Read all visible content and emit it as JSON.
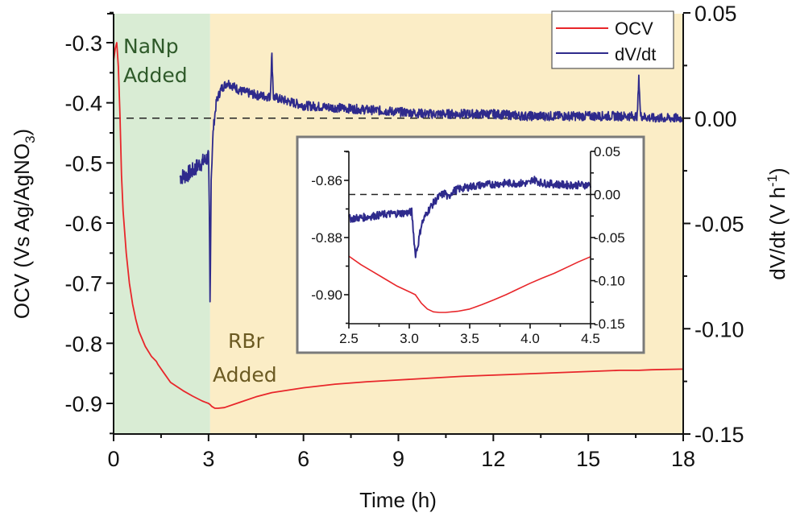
{
  "chart_data": {
    "type": "line",
    "title": "",
    "xlabel": "Time (h)",
    "ylabel_left": "OCV (Vs Ag/AgNO",
    "ylabel_left_sub": "3",
    "ylabel_left_close": ")",
    "ylabel_right": "dV/dt (V h",
    "ylabel_right_sup": "-1",
    "ylabel_right_close": ")",
    "xlim": [
      0,
      18
    ],
    "ylim_left": [
      -0.95,
      -0.25
    ],
    "ylim_right": [
      -0.15,
      0.05
    ],
    "x_ticks": [
      0,
      3,
      6,
      9,
      12,
      15,
      18
    ],
    "x_tick_labels": [
      "0",
      "3",
      "6",
      "9",
      "12",
      "15",
      "18"
    ],
    "y_left_ticks": [
      -0.3,
      -0.4,
      -0.5,
      -0.6,
      -0.7,
      -0.8,
      -0.9
    ],
    "y_left_tick_labels": [
      "-0.3",
      "-0.4",
      "-0.5",
      "-0.6",
      "-0.7",
      "-0.8",
      "-0.9"
    ],
    "y_right_ticks": [
      0.05,
      0.0,
      -0.05,
      -0.1,
      -0.15
    ],
    "y_right_tick_labels": [
      "0.05",
      "0.00",
      "-0.05",
      "-0.10",
      "-0.15"
    ],
    "grid": false,
    "legend": {
      "placement": "top-right",
      "entries": [
        {
          "name": "OCV",
          "color": "#e8262a"
        },
        {
          "name": "dV/dt",
          "color": "#2e2a8c"
        }
      ]
    },
    "regions": [
      {
        "name": "NaNp",
        "x_range": [
          0,
          3.05
        ],
        "color": "#d9ecd4"
      },
      {
        "name": "RBr",
        "x_range": [
          3.05,
          18
        ],
        "color": "#fbedc6"
      }
    ],
    "annotations": [
      {
        "text_line1": "NaNp",
        "text_line2": "Added",
        "color": "#2f5a2a",
        "x": 0.35,
        "y": -0.3
      },
      {
        "text_line1": "RBr",
        "text_line2": "Added",
        "color": "#6b5a22",
        "x": 4.3,
        "y": -0.83
      }
    ],
    "reference_line": {
      "axis": "right",
      "y": 0.0,
      "style": "dashed"
    },
    "series": [
      {
        "name": "OCV",
        "axis": "left",
        "color": "#e8262a",
        "x": [
          0.0,
          0.05,
          0.1,
          0.15,
          0.2,
          0.25,
          0.3,
          0.4,
          0.5,
          0.6,
          0.7,
          0.8,
          1.0,
          1.2,
          1.35,
          1.4,
          1.6,
          1.8,
          2.0,
          2.2,
          2.5,
          2.8,
          3.0,
          3.05,
          3.1,
          3.2,
          3.3,
          3.5,
          4.0,
          4.5,
          5.0,
          6.0,
          7.0,
          8.0,
          9.0,
          10.0,
          11.0,
          12.0,
          13.0,
          14.0,
          15.0,
          16.0,
          16.6,
          17.0,
          18.0
        ],
        "y": [
          -0.33,
          -0.31,
          -0.3,
          -0.34,
          -0.42,
          -0.52,
          -0.58,
          -0.65,
          -0.7,
          -0.735,
          -0.76,
          -0.78,
          -0.805,
          -0.822,
          -0.83,
          -0.835,
          -0.85,
          -0.865,
          -0.872,
          -0.879,
          -0.888,
          -0.896,
          -0.9,
          -0.902,
          -0.905,
          -0.908,
          -0.908,
          -0.907,
          -0.898,
          -0.889,
          -0.882,
          -0.874,
          -0.868,
          -0.864,
          -0.861,
          -0.858,
          -0.855,
          -0.853,
          -0.851,
          -0.849,
          -0.847,
          -0.845,
          -0.845,
          -0.844,
          -0.843
        ]
      },
      {
        "name": "dV/dt",
        "axis": "right",
        "color": "#2e2a8c",
        "x": [
          2.1,
          2.3,
          2.5,
          2.7,
          2.9,
          3.0,
          3.03,
          3.05,
          3.08,
          3.15,
          3.25,
          3.4,
          3.6,
          3.8,
          4.0,
          4.5,
          4.95,
          5.0,
          5.05,
          5.5,
          6.0,
          7.0,
          8.0,
          9.0,
          10.0,
          11.0,
          12.0,
          13.0,
          14.0,
          15.0,
          16.0,
          16.55,
          16.6,
          16.65,
          17.0,
          18.0
        ],
        "y": [
          -0.028,
          -0.027,
          -0.025,
          -0.022,
          -0.02,
          -0.018,
          -0.05,
          -0.092,
          -0.03,
          -0.005,
          0.008,
          0.014,
          0.017,
          0.015,
          0.013,
          0.011,
          0.01,
          0.031,
          0.01,
          0.008,
          0.006,
          0.005,
          0.004,
          0.003,
          0.002,
          0.002,
          0.002,
          0.001,
          0.001,
          0.001,
          0.001,
          0.001,
          0.02,
          0.001,
          0.0,
          0.0
        ]
      }
    ],
    "inset": {
      "type": "line",
      "xlim": [
        2.5,
        4.5
      ],
      "ylim_left": [
        -0.91,
        -0.85
      ],
      "ylim_right": [
        -0.15,
        0.05
      ],
      "x_ticks": [
        2.5,
        3.0,
        3.5,
        4.0,
        4.5
      ],
      "x_tick_labels": [
        "2.5",
        "3.0",
        "3.5",
        "4.0",
        "4.5"
      ],
      "y_left_ticks": [
        -0.86,
        -0.88,
        -0.9
      ],
      "y_left_tick_labels": [
        "-0.86",
        "-0.88",
        "-0.90"
      ],
      "y_right_ticks": [
        0.05,
        0.0,
        -0.05,
        -0.1,
        -0.15
      ],
      "y_right_tick_labels": [
        "0.05",
        "0.00",
        "-0.05",
        "-0.10",
        "-0.15"
      ],
      "reference_line": {
        "axis": "right",
        "y": 0.0,
        "style": "dashed"
      },
      "series": [
        {
          "name": "OCV",
          "axis": "left",
          "color": "#e8262a",
          "x": [
            2.5,
            2.6,
            2.7,
            2.8,
            2.9,
            3.0,
            3.05,
            3.1,
            3.15,
            3.2,
            3.25,
            3.3,
            3.4,
            3.5,
            3.6,
            3.7,
            3.8,
            3.9,
            4.0,
            4.1,
            4.2,
            4.3,
            4.4,
            4.5
          ],
          "y": [
            -0.8865,
            -0.8895,
            -0.892,
            -0.8945,
            -0.897,
            -0.899,
            -0.9,
            -0.903,
            -0.905,
            -0.906,
            -0.9062,
            -0.9062,
            -0.9058,
            -0.905,
            -0.9035,
            -0.9018,
            -0.9,
            -0.898,
            -0.896,
            -0.8942,
            -0.8925,
            -0.8905,
            -0.8885,
            -0.8867
          ]
        },
        {
          "name": "dV/dt",
          "axis": "right",
          "color": "#2e2a8c",
          "x": [
            2.5,
            2.6,
            2.7,
            2.8,
            2.9,
            3.0,
            3.02,
            3.05,
            3.07,
            3.1,
            3.15,
            3.2,
            3.25,
            3.3,
            3.32,
            3.35,
            3.4,
            3.5,
            3.6,
            3.7,
            3.8,
            3.9,
            4.0,
            4.02,
            4.1,
            4.2,
            4.3,
            4.4,
            4.5
          ],
          "y": [
            -0.028,
            -0.027,
            -0.025,
            -0.023,
            -0.022,
            -0.021,
            -0.02,
            -0.07,
            -0.06,
            -0.035,
            -0.02,
            -0.01,
            -0.002,
            0.002,
            -0.005,
            0.003,
            0.006,
            0.009,
            0.011,
            0.012,
            0.013,
            0.013,
            0.013,
            0.018,
            0.013,
            0.012,
            0.011,
            0.011,
            0.011
          ]
        }
      ]
    }
  }
}
